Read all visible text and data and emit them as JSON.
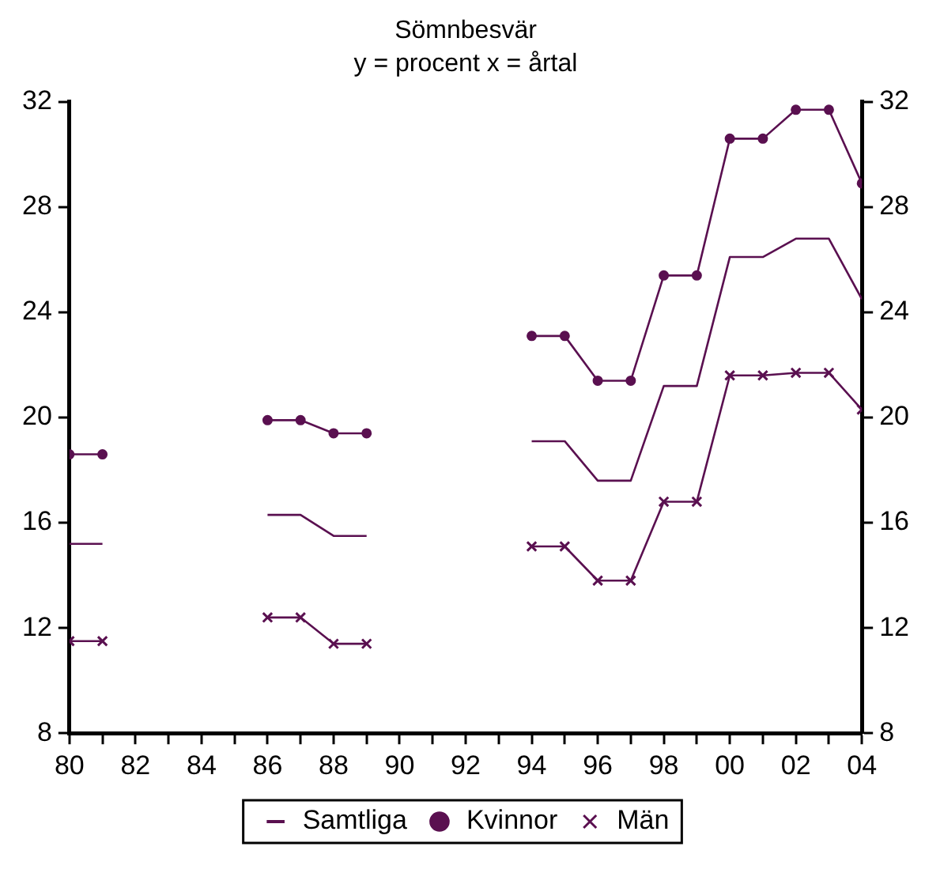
{
  "chart_data": {
    "type": "line",
    "title": "Sömnbesvär",
    "subtitle": "y = procent x = årtal",
    "x": [
      1980,
      1981,
      1982,
      1983,
      1984,
      1985,
      1986,
      1987,
      1988,
      1989,
      1990,
      1991,
      1992,
      1993,
      1994,
      1995,
      1996,
      1997,
      1998,
      1999,
      2000,
      2001,
      2002,
      2003,
      2004
    ],
    "series": [
      {
        "name": "Samtliga",
        "color": "#5a1050",
        "marker": "none",
        "values": [
          15.2,
          15.2,
          null,
          null,
          null,
          null,
          16.3,
          16.3,
          15.5,
          15.5,
          null,
          null,
          null,
          null,
          19.1,
          19.1,
          17.6,
          17.6,
          21.2,
          21.2,
          26.1,
          26.1,
          26.8,
          26.8,
          24.5
        ]
      },
      {
        "name": "Kvinnor",
        "color": "#5a1050",
        "marker": "circle",
        "values": [
          18.6,
          18.6,
          null,
          null,
          null,
          null,
          19.9,
          19.9,
          19.4,
          19.4,
          null,
          null,
          null,
          null,
          23.1,
          23.1,
          21.4,
          21.4,
          25.4,
          25.4,
          30.6,
          30.6,
          31.7,
          31.7,
          28.9
        ]
      },
      {
        "name": "Män",
        "color": "#5a1050",
        "marker": "cross",
        "values": [
          11.5,
          11.5,
          null,
          null,
          null,
          null,
          12.4,
          12.4,
          11.4,
          11.4,
          null,
          null,
          null,
          null,
          15.1,
          15.1,
          13.8,
          13.8,
          16.8,
          16.8,
          21.6,
          21.6,
          21.7,
          21.7,
          20.3
        ]
      }
    ],
    "xlim": [
      1980,
      2004
    ],
    "xticks": [
      {
        "value": 1980,
        "label": "80"
      },
      {
        "value": 1981,
        "label": null
      },
      {
        "value": 1982,
        "label": "82"
      },
      {
        "value": 1983,
        "label": null
      },
      {
        "value": 1984,
        "label": "84"
      },
      {
        "value": 1985,
        "label": null
      },
      {
        "value": 1986,
        "label": "86"
      },
      {
        "value": 1987,
        "label": null
      },
      {
        "value": 1988,
        "label": "88"
      },
      {
        "value": 1989,
        "label": null
      },
      {
        "value": 1990,
        "label": "90"
      },
      {
        "value": 1991,
        "label": null
      },
      {
        "value": 1992,
        "label": "92"
      },
      {
        "value": 1993,
        "label": null
      },
      {
        "value": 1994,
        "label": "94"
      },
      {
        "value": 1995,
        "label": null
      },
      {
        "value": 1996,
        "label": "96"
      },
      {
        "value": 1997,
        "label": null
      },
      {
        "value": 1998,
        "label": "98"
      },
      {
        "value": 1999,
        "label": null
      },
      {
        "value": 2000,
        "label": "00"
      },
      {
        "value": 2001,
        "label": null
      },
      {
        "value": 2002,
        "label": "02"
      },
      {
        "value": 2003,
        "label": null
      },
      {
        "value": 2004,
        "label": "04"
      }
    ],
    "ylim": [
      8,
      32
    ],
    "yticks": [
      8,
      12,
      16,
      20,
      24,
      28,
      32
    ],
    "y2lim": [
      8,
      32
    ],
    "y2ticks": [
      8,
      12,
      16,
      20,
      24,
      28,
      32
    ],
    "grid": false,
    "legend": "bottom"
  }
}
